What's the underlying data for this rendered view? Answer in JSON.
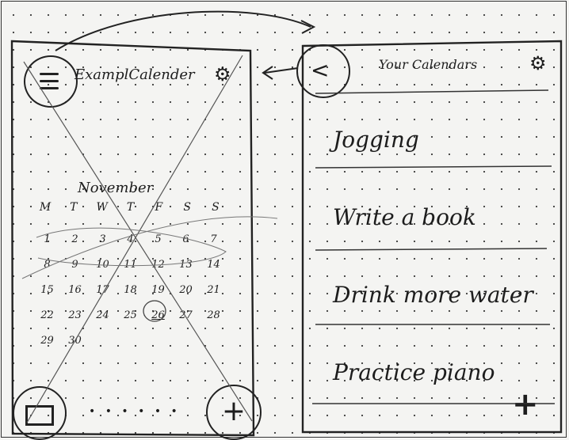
{
  "left_screen": {
    "app_title": "ExamplCalender",
    "settings_icon": "gear-icon",
    "menu_icon": "hamburger-icon",
    "month": "November",
    "weekdays": [
      "M",
      "T",
      "W",
      "T",
      "F",
      "S",
      "S"
    ],
    "weeks": [
      [
        "1",
        "2",
        "3",
        "4",
        "5",
        "6",
        "7"
      ],
      [
        "8",
        "9",
        "10",
        "11",
        "12",
        "13",
        "14"
      ],
      [
        "15",
        "16",
        "17",
        "18",
        "19",
        "20",
        "21"
      ],
      [
        "22",
        "23",
        "24",
        "25",
        "26",
        "27",
        "28"
      ],
      [
        "29",
        "30",
        "",
        "",
        "",
        "",
        ""
      ]
    ],
    "calendar_button_icon": "calendar-icon",
    "pager_dots": "• • • • • •",
    "add_label": "+"
  },
  "right_screen": {
    "title": "Your Calendars",
    "back_label": "<",
    "settings_icon": "gear-icon",
    "calendars": [
      "Jogging",
      "Write a book",
      "Drink more water",
      "Practice piano"
    ],
    "add_label": "+"
  }
}
